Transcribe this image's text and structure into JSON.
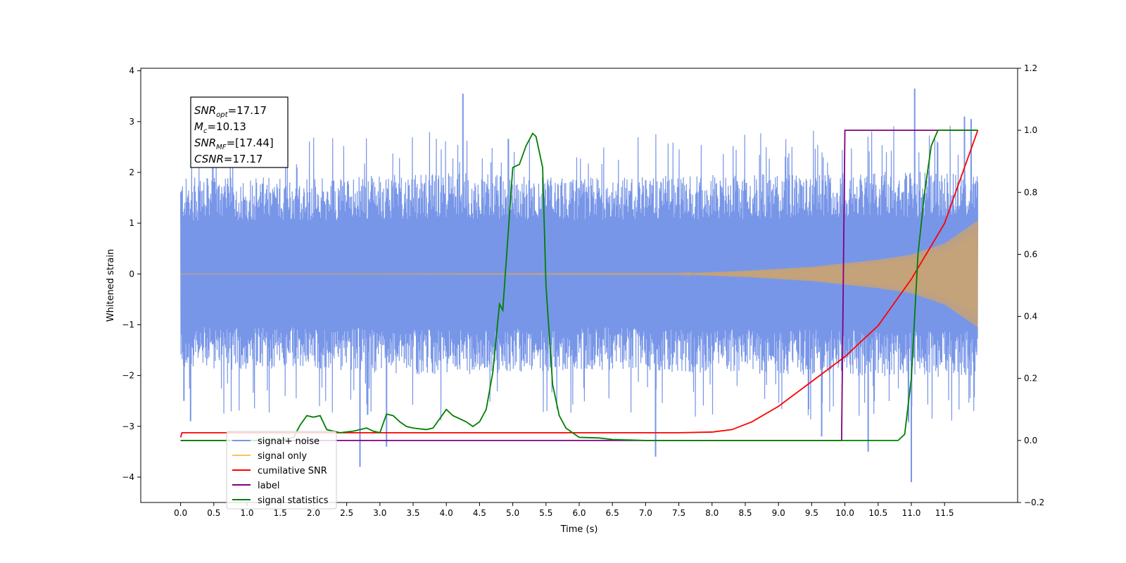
{
  "chart_data": {
    "type": "line",
    "xlabel": "Time (s)",
    "ylabel_left": "Whitened strain",
    "ylabel_right": "",
    "xlim": [
      -0.6,
      12.6
    ],
    "ylim_left": [
      -4.5,
      4.05
    ],
    "ylim_right": [
      -0.2,
      1.2
    ],
    "x_ticks": [
      0.0,
      0.5,
      1.0,
      1.5,
      2.0,
      2.5,
      3.0,
      3.5,
      4.0,
      4.5,
      5.0,
      5.5,
      6.0,
      6.5,
      7.0,
      7.5,
      8.0,
      8.5,
      9.0,
      9.5,
      10.0,
      10.5,
      11.0,
      11.5
    ],
    "x_tick_labels": [
      "0.0",
      "0.5",
      "1.0",
      "1.5",
      "2.0",
      "2.5",
      "3.0",
      "3.5",
      "4.0",
      "4.5",
      "5.0",
      "5.5",
      "6.0",
      "6.5",
      "7.0",
      "7.5",
      "8.0",
      "8.5",
      "9.0",
      "9.5",
      "10.0",
      "10.5",
      "11.0",
      "11.5"
    ],
    "y_left_ticks": [
      4,
      3,
      2,
      1,
      0,
      -1,
      -2,
      -3,
      -4
    ],
    "y_left_tick_labels": [
      "4",
      "3",
      "2",
      "1",
      "0",
      "−1",
      "−2",
      "−3",
      "−4"
    ],
    "y_right_ticks": [
      1.2,
      1.0,
      0.8,
      0.6,
      0.4,
      0.2,
      0.0,
      -0.2
    ],
    "y_right_tick_labels": [
      "1.2",
      "1.0",
      "0.8",
      "0.6",
      "0.4",
      "0.2",
      "0.0",
      "−0.2"
    ],
    "grid": false,
    "legend_position": "lower-left",
    "annotation": {
      "lines": [
        {
          "sym": "SNR",
          "sub": "opt",
          "val": "=17.17"
        },
        {
          "sym": "M",
          "sub": "c",
          "val": "=10.13"
        },
        {
          "sym": "SNR",
          "sub": "MF",
          "val": "=[17.44]"
        },
        {
          "sym": "CSNR",
          "sub": "",
          "val": "=17.17"
        }
      ]
    },
    "series": [
      {
        "name": "signal+ noise",
        "axis": "left",
        "color": "#7896e8",
        "kind": "noise-band",
        "t_range": [
          0.0,
          12.0
        ],
        "envelope_points": [
          [
            0.0,
            1.9
          ],
          [
            2.0,
            1.9
          ],
          [
            4.0,
            2.0
          ],
          [
            6.0,
            1.9
          ],
          [
            8.0,
            1.95
          ],
          [
            10.0,
            2.0
          ],
          [
            12.0,
            2.05
          ]
        ],
        "peaks": [
          [
            0.05,
            -2.5
          ],
          [
            0.15,
            -2.9
          ],
          [
            2.7,
            -3.8
          ],
          [
            3.1,
            -3.4
          ],
          [
            4.25,
            3.55
          ],
          [
            7.15,
            -3.6
          ],
          [
            9.65,
            -3.2
          ],
          [
            10.35,
            -3.5
          ],
          [
            11.0,
            -4.1
          ],
          [
            11.05,
            3.65
          ],
          [
            11.8,
            3.1
          ],
          [
            11.9,
            3.05
          ]
        ]
      },
      {
        "name": "signal only",
        "axis": "left",
        "color": "#c4a27a",
        "kind": "chirp",
        "t_range": [
          0.0,
          12.0
        ],
        "amplitude_points": [
          [
            0.0,
            0.0
          ],
          [
            7.5,
            0.01
          ],
          [
            8.5,
            0.06
          ],
          [
            9.5,
            0.14
          ],
          [
            10.5,
            0.28
          ],
          [
            11.0,
            0.38
          ],
          [
            11.5,
            0.6
          ],
          [
            12.0,
            1.05
          ]
        ]
      },
      {
        "name": "cumilative SNR",
        "axis": "right",
        "color": "#ff0000",
        "points": [
          [
            0.0,
            0.01
          ],
          [
            0.02,
            0.025
          ],
          [
            7.5,
            0.025
          ],
          [
            8.0,
            0.027
          ],
          [
            8.3,
            0.035
          ],
          [
            8.6,
            0.06
          ],
          [
            9.0,
            0.11
          ],
          [
            9.5,
            0.19
          ],
          [
            10.0,
            0.27
          ],
          [
            10.5,
            0.37
          ],
          [
            11.0,
            0.52
          ],
          [
            11.5,
            0.7
          ],
          [
            12.0,
            1.0
          ]
        ]
      },
      {
        "name": "label",
        "axis": "right",
        "color": "#800080",
        "points": [
          [
            0.0,
            0.0
          ],
          [
            9.95,
            0.0
          ],
          [
            10.0,
            1.0
          ],
          [
            12.0,
            1.0
          ]
        ]
      },
      {
        "name": "signal statistics",
        "axis": "right",
        "color": "#008000",
        "points": [
          [
            0.0,
            0.0
          ],
          [
            1.5,
            0.0
          ],
          [
            1.7,
            0.01
          ],
          [
            1.8,
            0.05
          ],
          [
            1.9,
            0.08
          ],
          [
            2.0,
            0.075
          ],
          [
            2.1,
            0.08
          ],
          [
            2.2,
            0.035
          ],
          [
            2.4,
            0.025
          ],
          [
            2.6,
            0.03
          ],
          [
            2.8,
            0.04
          ],
          [
            2.9,
            0.03
          ],
          [
            3.0,
            0.025
          ],
          [
            3.1,
            0.085
          ],
          [
            3.2,
            0.08
          ],
          [
            3.3,
            0.06
          ],
          [
            3.4,
            0.045
          ],
          [
            3.5,
            0.04
          ],
          [
            3.7,
            0.035
          ],
          [
            3.8,
            0.04
          ],
          [
            4.0,
            0.1
          ],
          [
            4.1,
            0.08
          ],
          [
            4.3,
            0.06
          ],
          [
            4.4,
            0.045
          ],
          [
            4.5,
            0.06
          ],
          [
            4.6,
            0.1
          ],
          [
            4.7,
            0.22
          ],
          [
            4.8,
            0.44
          ],
          [
            4.85,
            0.42
          ],
          [
            5.0,
            0.88
          ],
          [
            5.1,
            0.89
          ],
          [
            5.2,
            0.95
          ],
          [
            5.3,
            0.99
          ],
          [
            5.35,
            0.98
          ],
          [
            5.45,
            0.88
          ],
          [
            5.5,
            0.5
          ],
          [
            5.6,
            0.18
          ],
          [
            5.7,
            0.08
          ],
          [
            5.8,
            0.04
          ],
          [
            6.0,
            0.01
          ],
          [
            6.3,
            0.008
          ],
          [
            6.5,
            0.003
          ],
          [
            7.0,
            0.0
          ],
          [
            10.8,
            0.0
          ],
          [
            10.9,
            0.02
          ],
          [
            11.0,
            0.2
          ],
          [
            11.1,
            0.6
          ],
          [
            11.2,
            0.8
          ],
          [
            11.3,
            0.95
          ],
          [
            11.4,
            1.0
          ],
          [
            12.0,
            1.0
          ]
        ]
      }
    ],
    "legend_order": [
      {
        "name": "signal+ noise",
        "color": "#7896e8"
      },
      {
        "name": "signal only",
        "color": "#ffc060"
      },
      {
        "name": "cumilative SNR",
        "color": "#ff0000"
      },
      {
        "name": "label",
        "color": "#800080"
      },
      {
        "name": "signal statistics",
        "color": "#008000"
      }
    ]
  }
}
